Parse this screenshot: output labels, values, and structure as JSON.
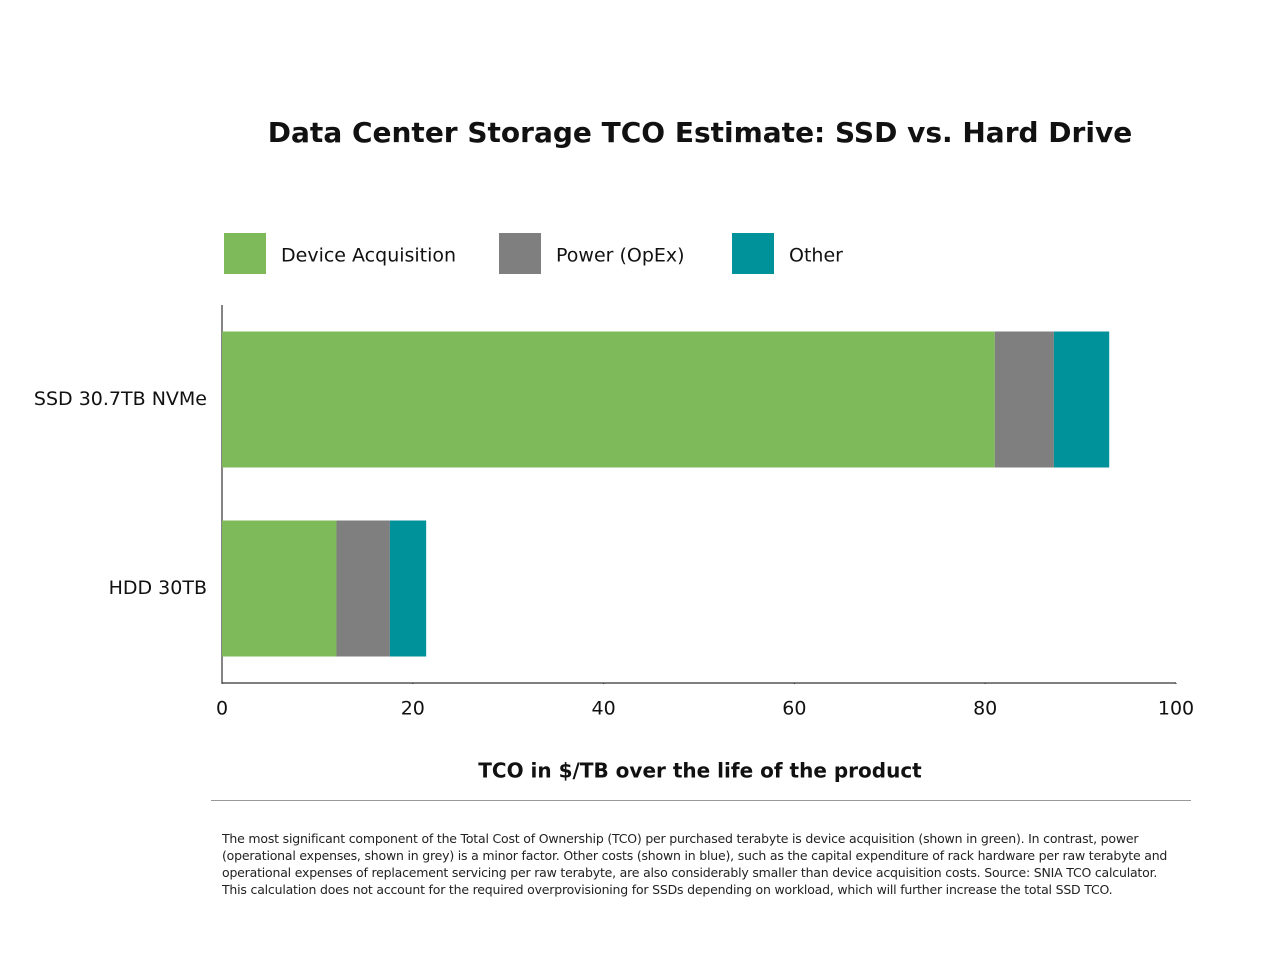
{
  "chart_data": {
    "type": "bar",
    "orientation": "horizontal",
    "stacked": true,
    "title": "Data Center Storage TCO Estimate: SSD vs. Hard Drive",
    "categories": [
      "SSD 30.7TB NVMe",
      "HDD 30TB"
    ],
    "series": [
      {
        "name": "Device Acquisition",
        "color": "#7fba5a",
        "values": [
          81,
          12
        ]
      },
      {
        "name": "Power (OpEx)",
        "color": "#7f7f7f",
        "values": [
          6.2,
          5.6
        ]
      },
      {
        "name": "Other",
        "color": "#00929a",
        "values": [
          5.8,
          3.8
        ]
      }
    ],
    "xlim": [
      0,
      100
    ],
    "xticks": [
      0,
      20,
      40,
      60,
      80,
      100
    ],
    "x_label": "TCO in $/TB over the life of the product",
    "legend": "top",
    "note": "The most significant component of the Total Cost of Ownership (TCO) per purchased terabyte is device acquisition (shown in green). In contrast, power (operational expenses, shown in grey) is a minor factor. Other costs (shown in blue), such as the capital expenditure of rack hardware per raw terabyte and operational expenses of replacement servicing per raw terabyte, are also considerably smaller than device acquisition costs. Source: SNIA TCO calculator. This calculation does not account for the required overprovisioning for SSDs depending on workload, which will further increase the total SSD TCO."
  }
}
